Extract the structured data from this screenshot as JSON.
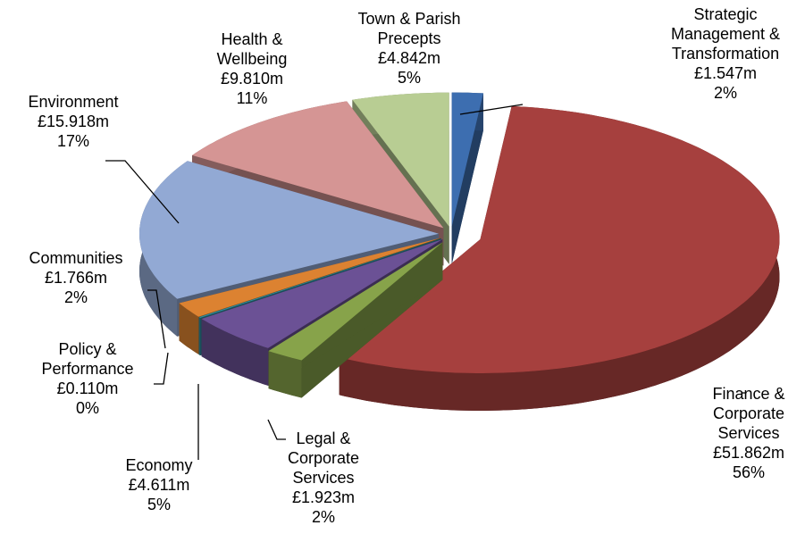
{
  "chart_data": {
    "type": "pie3d",
    "categories": [
      "Strategic Management & Transformation",
      "Finance & Corporate Services",
      "Legal & Corporate Services",
      "Economy",
      "Policy & Performance",
      "Communities",
      "Environment",
      "Health & Wellbeing",
      "Town & Parish Precepts"
    ],
    "values": [
      1.547,
      51.862,
      1.923,
      4.611,
      0.11,
      1.766,
      15.918,
      9.81,
      4.842
    ],
    "value_labels": [
      "£1.547m",
      "£51.862m",
      "£1.923m",
      "£4.611m",
      "£0.110m",
      "£1.766m",
      "£15.918m",
      "£9.810m",
      "£4.842m"
    ],
    "percent_labels": [
      "2%",
      "56%",
      "2%",
      "5%",
      "0%",
      "2%",
      "17%",
      "11%",
      "5%"
    ],
    "colors": [
      "#3d6eb0",
      "#a6403e",
      "#87a34a",
      "#6b5195",
      "#2f8c9c",
      "#dc8231",
      "#92a9d4",
      "#d59594",
      "#b8cd93"
    ]
  }
}
